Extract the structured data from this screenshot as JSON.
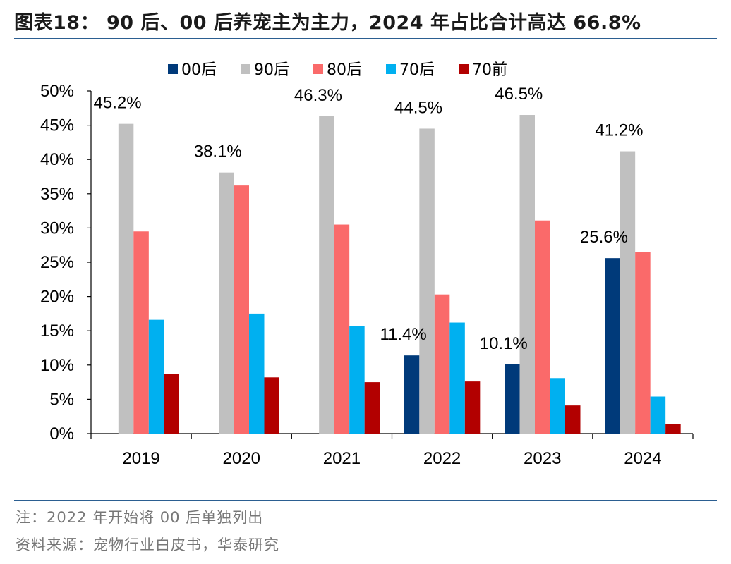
{
  "header": {
    "title": "图表18： 90 后、00 后养宠主为主力，2024 年占比合计高达 66.8%"
  },
  "footer": {
    "note": "注：2022 年开始将 00 后单独列出",
    "source": "资料来源：宠物行业白皮书，华泰研究"
  },
  "chart_data": {
    "type": "bar",
    "categories": [
      "2019",
      "2020",
      "2021",
      "2022",
      "2023",
      "2024"
    ],
    "series": [
      {
        "name": "00后",
        "color": "#003a7a",
        "values": [
          null,
          null,
          null,
          11.4,
          10.1,
          25.6
        ]
      },
      {
        "name": "90后",
        "color": "#c0c0c0",
        "values": [
          45.2,
          38.1,
          46.3,
          44.5,
          46.5,
          41.2
        ]
      },
      {
        "name": "80后",
        "color": "#fa6a6a",
        "values": [
          29.5,
          36.2,
          30.5,
          20.3,
          31.1,
          26.5
        ]
      },
      {
        "name": "70后",
        "color": "#00b0f0",
        "values": [
          16.6,
          17.5,
          15.7,
          16.2,
          8.1,
          5.4
        ]
      },
      {
        "name": "70前",
        "color": "#b20000",
        "values": [
          8.7,
          8.2,
          7.5,
          7.6,
          4.1,
          1.4
        ]
      }
    ],
    "data_labels": [
      {
        "category": "2019",
        "series": "90后",
        "text": "45.2%"
      },
      {
        "category": "2020",
        "series": "90后",
        "text": "38.1%"
      },
      {
        "category": "2021",
        "series": "90后",
        "text": "46.3%"
      },
      {
        "category": "2022",
        "series": "90后",
        "text": "44.5%"
      },
      {
        "category": "2023",
        "series": "90后",
        "text": "46.5%"
      },
      {
        "category": "2024",
        "series": "90后",
        "text": "41.2%"
      },
      {
        "category": "2022",
        "series": "00后",
        "text": "11.4%"
      },
      {
        "category": "2023",
        "series": "00后",
        "text": "10.1%"
      },
      {
        "category": "2024",
        "series": "00后",
        "text": "25.6%"
      }
    ],
    "y_ticks": [
      "0%",
      "5%",
      "10%",
      "15%",
      "20%",
      "25%",
      "30%",
      "35%",
      "40%",
      "45%",
      "50%"
    ],
    "ylim": [
      0,
      50
    ],
    "ystep": 5,
    "legend_position": "top",
    "grid": false,
    "title": "",
    "xlabel": "",
    "ylabel": ""
  }
}
